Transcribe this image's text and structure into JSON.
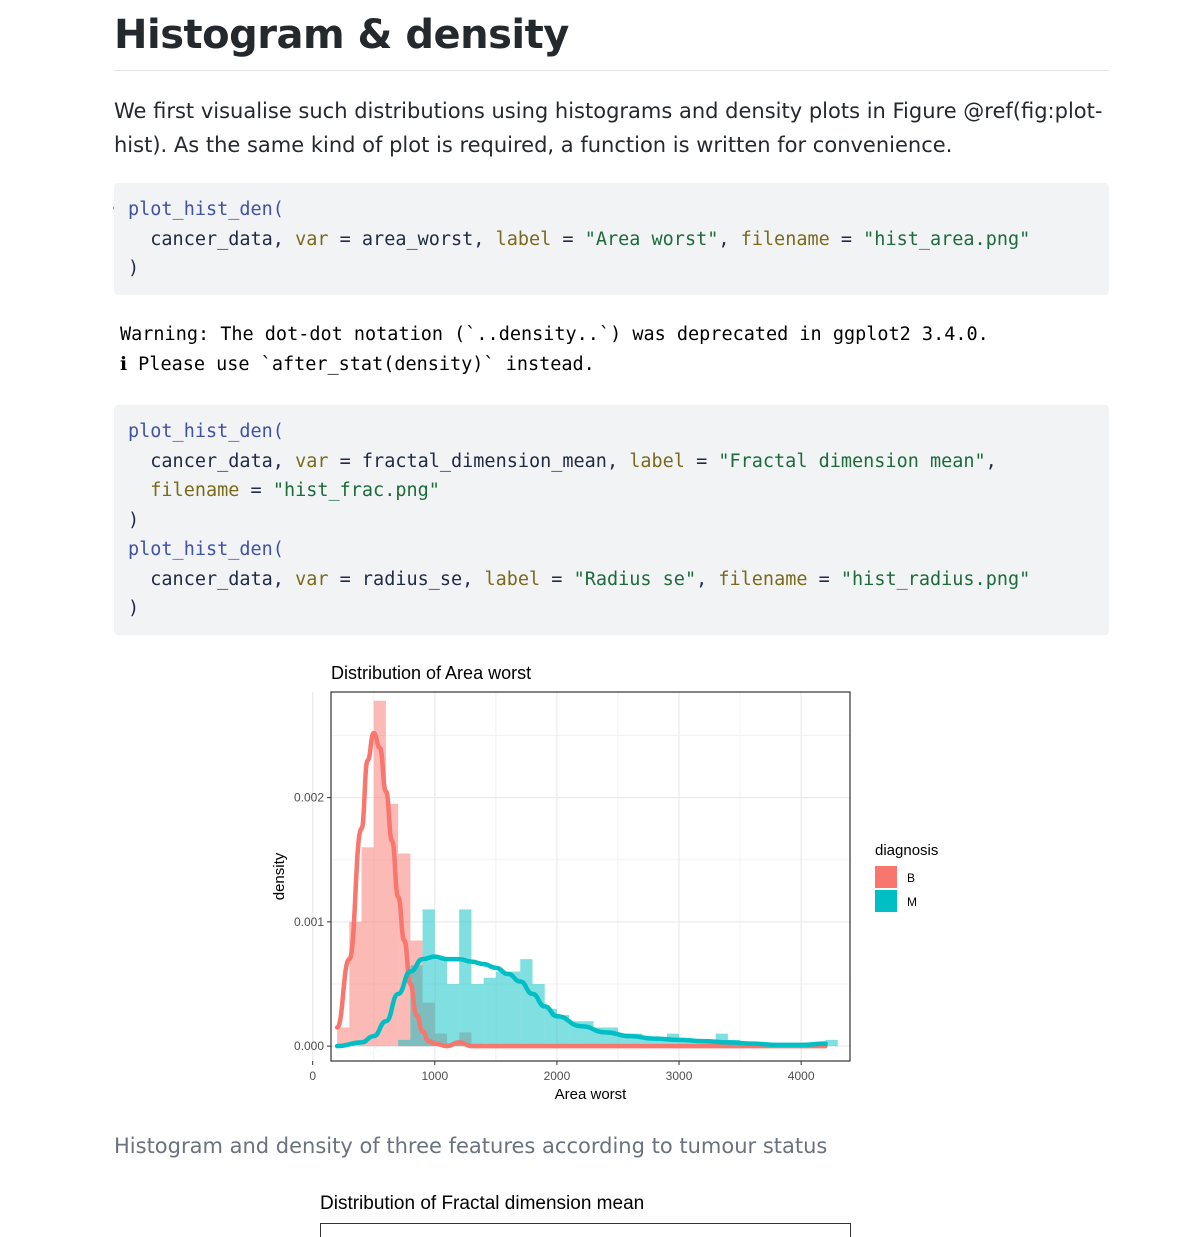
{
  "heading": "Histogram & density",
  "intro": "We first visualise such distributions using histograms and density plots in Figure @ref(fig:plot-hist). As the same kind of plot is required, a function is written for convenience.",
  "code1": {
    "line1_fn": "plot_hist_den(",
    "line2": {
      "a": "cancer_data, ",
      "b": "var",
      "c": " = area_worst, ",
      "d": "label",
      "e": " = ",
      "f": "\"Area worst\"",
      "g": ", ",
      "h": "filename",
      "i": " = ",
      "j": "\"hist_area.png\""
    },
    "line3": ")"
  },
  "warning": {
    "line1": "Warning: The dot-dot notation (`..density..`) was deprecated in ggplot2 3.4.0.",
    "line2": "ℹ Please use `after_stat(density)` instead."
  },
  "code2": {
    "l1": "plot_hist_den(",
    "l2": {
      "a": "cancer_data, ",
      "b": "var",
      "c": " = fractal_dimension_mean, ",
      "d": "label",
      "e": " = ",
      "f": "\"Fractal dimension mean\"",
      "g": ","
    },
    "l3": {
      "a": "filename",
      "b": " = ",
      "c": "\"hist_frac.png\""
    },
    "l4": ")",
    "l5": "plot_hist_den(",
    "l6": {
      "a": "cancer_data, ",
      "b": "var",
      "c": " = radius_se, ",
      "d": "label",
      "e": " = ",
      "f": "\"Radius se\"",
      "g": ", ",
      "h": "filename",
      "i": " = ",
      "j": "\"hist_radius.png\""
    },
    "l7": ")"
  },
  "caption": "Histogram and density of three features according to tumour status",
  "chart2_title": "Distribution of Fractal dimension mean",
  "chart_data": {
    "type": "bar",
    "title": "Distribution of Area worst",
    "xlabel": "Area worst",
    "ylabel": "density",
    "xlim": [
      150,
      4400
    ],
    "ylim": [
      -0.00012,
      0.00285
    ],
    "x_ticks": [
      0,
      1000,
      2000,
      3000,
      4000
    ],
    "y_ticks": [
      "0.000",
      "0.001",
      "0.002"
    ],
    "y_tick_values": [
      0,
      0.001,
      0.002
    ],
    "grid": true,
    "legend": {
      "title": "diagnosis",
      "placement": "right",
      "entries": [
        "B",
        "M"
      ]
    },
    "colors": {
      "B": "#F8766D",
      "M": "#00BFC4"
    },
    "bin_width": 100,
    "series": [
      {
        "name": "B",
        "hist_bin_starts": [
          200,
          300,
          400,
          500,
          600,
          700,
          800,
          900,
          1000,
          1100,
          1200,
          1300,
          1400
        ],
        "hist_values": [
          0.00015,
          0.001,
          0.0016,
          0.00278,
          0.00195,
          0.00155,
          0.00085,
          0.00035,
          0.0001,
          2e-05,
          0.00011,
          2e-05,
          1e-05
        ],
        "density_x": [
          200,
          300,
          400,
          450,
          500,
          550,
          600,
          650,
          700,
          750,
          800,
          850,
          900,
          950,
          1000,
          1100,
          1200,
          1300,
          1500,
          2000,
          2500,
          3000,
          3500,
          4000,
          4200
        ],
        "density_y": [
          0.00015,
          0.0007,
          0.00175,
          0.0023,
          0.00252,
          0.0024,
          0.00205,
          0.00165,
          0.0012,
          0.00085,
          0.0005,
          0.00025,
          0.00012,
          4e-05,
          2e-05,
          0.0,
          3e-05,
          0.0,
          0.0,
          0.0,
          0.0,
          0.0,
          0.0,
          0.0,
          0.0
        ]
      },
      {
        "name": "M",
        "hist_bin_starts": [
          700,
          800,
          900,
          1000,
          1100,
          1200,
          1300,
          1400,
          1500,
          1600,
          1700,
          1800,
          1900,
          2000,
          2100,
          2200,
          2300,
          2400,
          2500,
          2600,
          2700,
          2800,
          2900,
          3000,
          3100,
          3200,
          3300,
          3400,
          3500,
          3600,
          3700,
          3800,
          3900,
          4000,
          4100,
          4200
        ],
        "hist_values": [
          5e-05,
          0.00065,
          0.0011,
          0.0007,
          0.0005,
          0.0011,
          0.0005,
          0.00055,
          0.0006,
          0.0006,
          0.0007,
          0.0005,
          0.0003,
          0.00025,
          0.0002,
          0.0002,
          0.00015,
          0.00015,
          0.0001,
          0.0001,
          5e-05,
          5e-05,
          0.0001,
          5e-05,
          5e-05,
          5e-05,
          0.0001,
          5e-05,
          0.0,
          0.0,
          0.0,
          2e-05,
          0.0,
          0.0,
          0.0,
          5e-05
        ],
        "density_x": [
          200,
          400,
          500,
          600,
          700,
          800,
          900,
          1000,
          1100,
          1200,
          1300,
          1400,
          1500,
          1600,
          1700,
          1800,
          1900,
          2000,
          2200,
          2400,
          2600,
          2800,
          3000,
          3200,
          3400,
          3600,
          3800,
          4000,
          4200
        ],
        "density_y": [
          0.0,
          3e-05,
          8e-05,
          0.0002,
          0.00042,
          0.0006,
          0.0007,
          0.00072,
          0.0007,
          0.0007,
          0.00068,
          0.00066,
          0.00063,
          0.00058,
          0.00052,
          0.00042,
          0.00032,
          0.00024,
          0.00016,
          0.00011,
          8e-05,
          6e-05,
          5e-05,
          4e-05,
          3e-05,
          2e-05,
          1e-05,
          1e-05,
          2e-05
        ]
      }
    ]
  }
}
